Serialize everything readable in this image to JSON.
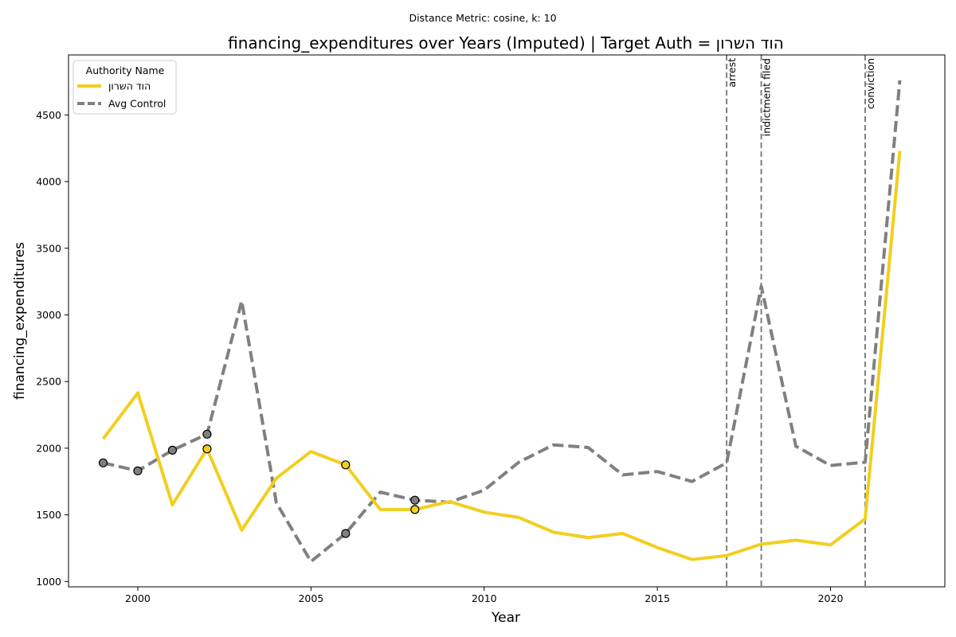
{
  "figure": {
    "suptitle": "Distance Metric: cosine, k: 10"
  },
  "chart_data": {
    "type": "line",
    "title": "financing_expenditures over Years (Imputed) | Target Auth = הוד השרון",
    "xlabel": "Year",
    "ylabel": "financing_expenditures",
    "xlim": [
      1998,
      2023.3
    ],
    "ylim": [
      960,
      4950
    ],
    "x_ticks": [
      2000,
      2005,
      2010,
      2015,
      2020
    ],
    "y_ticks": [
      1000,
      1500,
      2000,
      2500,
      3000,
      3500,
      4000,
      4500
    ],
    "grid": false,
    "legend": {
      "title": "Authority Name",
      "position": "top-left"
    },
    "x": [
      1999,
      2000,
      2001,
      2002,
      2003,
      2004,
      2005,
      2006,
      2007,
      2008,
      2009,
      2010,
      2011,
      2012,
      2013,
      2014,
      2015,
      2016,
      2017,
      2018,
      2019,
      2020,
      2021,
      2022
    ],
    "series": [
      {
        "name": "הוד השרון",
        "color": "#f2ce1f",
        "style": "solid",
        "values": [
          2070,
          2415,
          1575,
          1995,
          1385,
          1775,
          1975,
          1875,
          1540,
          1540,
          1600,
          1520,
          1480,
          1370,
          1330,
          1360,
          1255,
          1165,
          1195,
          1280,
          1310,
          1275,
          1470,
          4230
        ],
        "imputed_years": [
          2002,
          2006,
          2008
        ]
      },
      {
        "name": "Avg Control",
        "color": "#808080",
        "style": "dashed",
        "values": [
          1890,
          1830,
          1985,
          2105,
          3105,
          1590,
          1150,
          1360,
          1670,
          1610,
          1595,
          1685,
          1895,
          2025,
          2005,
          1800,
          1825,
          1750,
          1890,
          3215,
          2015,
          1870,
          1895,
          4760
        ],
        "imputed_years": [
          1999,
          2000,
          2001,
          2002,
          2006,
          2008
        ]
      }
    ],
    "events": [
      {
        "year": 2017,
        "label": "arrest"
      },
      {
        "year": 2018,
        "label": "indictment filed"
      },
      {
        "year": 2021,
        "label": "conviction"
      }
    ]
  }
}
